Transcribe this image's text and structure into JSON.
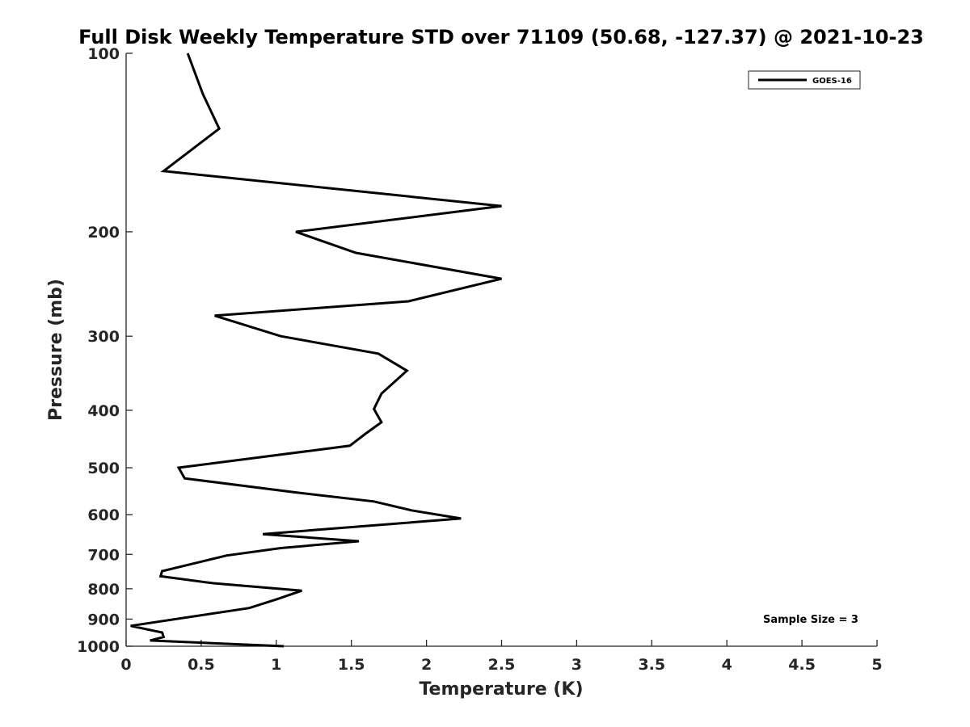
{
  "chart_data": {
    "type": "line",
    "title": "Full Disk Weekly Temperature STD over 71109 (50.68, -127.37) @ 2021-10-23",
    "xlabel": "Temperature (K)",
    "ylabel": "Pressure (mb)",
    "xlim": [
      0,
      5
    ],
    "ylim": [
      1000,
      100
    ],
    "y_scale": "log",
    "y_reversed": true,
    "x_ticks": [
      "0",
      "0.5",
      "1",
      "1.5",
      "2",
      "2.5",
      "3",
      "3.5",
      "4",
      "4.5",
      "5"
    ],
    "y_ticks": [
      "100",
      "200",
      "300",
      "400",
      "500",
      "600",
      "700",
      "800",
      "900",
      "1000"
    ],
    "grid": false,
    "legend_position": "top-right",
    "annotation": "Sample Size = 3",
    "series": [
      {
        "name": "GOES-16",
        "color": "#000000",
        "points": [
          {
            "x": 0.41,
            "y": 100
          },
          {
            "x": 0.51,
            "y": 117
          },
          {
            "x": 0.62,
            "y": 134
          },
          {
            "x": 0.25,
            "y": 158
          },
          {
            "x": 2.5,
            "y": 181
          },
          {
            "x": 1.13,
            "y": 200
          },
          {
            "x": 1.53,
            "y": 217
          },
          {
            "x": 2.5,
            "y": 240
          },
          {
            "x": 1.88,
            "y": 262
          },
          {
            "x": 0.59,
            "y": 277
          },
          {
            "x": 1.03,
            "y": 300
          },
          {
            "x": 1.68,
            "y": 321
          },
          {
            "x": 1.87,
            "y": 343
          },
          {
            "x": 1.7,
            "y": 375
          },
          {
            "x": 1.65,
            "y": 398
          },
          {
            "x": 1.7,
            "y": 419
          },
          {
            "x": 1.6,
            "y": 437
          },
          {
            "x": 1.49,
            "y": 459
          },
          {
            "x": 0.35,
            "y": 500
          },
          {
            "x": 0.39,
            "y": 521
          },
          {
            "x": 1.12,
            "y": 550
          },
          {
            "x": 1.65,
            "y": 570
          },
          {
            "x": 1.9,
            "y": 590
          },
          {
            "x": 2.23,
            "y": 609
          },
          {
            "x": 0.91,
            "y": 647
          },
          {
            "x": 1.55,
            "y": 665
          },
          {
            "x": 1.03,
            "y": 683
          },
          {
            "x": 0.67,
            "y": 703
          },
          {
            "x": 0.24,
            "y": 747
          },
          {
            "x": 0.23,
            "y": 762
          },
          {
            "x": 0.58,
            "y": 783
          },
          {
            "x": 1.17,
            "y": 806
          },
          {
            "x": 1.0,
            "y": 834
          },
          {
            "x": 0.82,
            "y": 862
          },
          {
            "x": 0.03,
            "y": 924
          },
          {
            "x": 0.24,
            "y": 948
          },
          {
            "x": 0.25,
            "y": 965
          },
          {
            "x": 0.16,
            "y": 978
          },
          {
            "x": 1.05,
            "y": 1000
          }
        ]
      }
    ]
  }
}
